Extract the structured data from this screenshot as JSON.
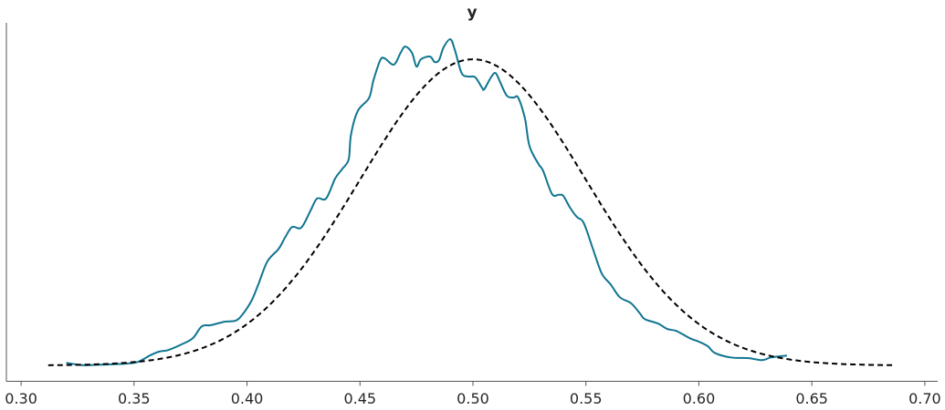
{
  "chart_data": {
    "type": "line",
    "title": "y",
    "xlabel": "",
    "ylabel": "",
    "xlim": [
      0.2935,
      0.7057
    ],
    "ylim": [
      -0.4,
      8.93
    ],
    "xticks": [
      0.3,
      0.35,
      0.4,
      0.45,
      0.5,
      0.55,
      0.6,
      0.65,
      0.7
    ],
    "xtick_labels": [
      "0.30",
      "0.35",
      "0.40",
      "0.45",
      "0.50",
      "0.55",
      "0.60",
      "0.65",
      "0.70"
    ],
    "yticks_shown": false,
    "grid": false,
    "legend": "none",
    "series": [
      {
        "style": "solid",
        "color": "#107591",
        "x": [
          0.32,
          0.327,
          0.335,
          0.347,
          0.352,
          0.357,
          0.361,
          0.365,
          0.371,
          0.376,
          0.38,
          0.384,
          0.39,
          0.395,
          0.398,
          0.402,
          0.405,
          0.409,
          0.414,
          0.417,
          0.42,
          0.424,
          0.428,
          0.431,
          0.435,
          0.439,
          0.442,
          0.445,
          0.446,
          0.449,
          0.454,
          0.456,
          0.459,
          0.461,
          0.465,
          0.468,
          0.47,
          0.473,
          0.475,
          0.477,
          0.481,
          0.483,
          0.485,
          0.487,
          0.49,
          0.492,
          0.495,
          0.498,
          0.501,
          0.504,
          0.505,
          0.508,
          0.51,
          0.512,
          0.515,
          0.518,
          0.52,
          0.523,
          0.525,
          0.529,
          0.531,
          0.535,
          0.538,
          0.54,
          0.543,
          0.546,
          0.549,
          0.553,
          0.557,
          0.561,
          0.565,
          0.57,
          0.574,
          0.576,
          0.582,
          0.586,
          0.59,
          0.596,
          0.6,
          0.604,
          0.607,
          0.614,
          0.622,
          0.628,
          0.632,
          0.639
        ],
        "y": [
          0.07,
          0.01,
          0.02,
          0.05,
          0.1,
          0.26,
          0.36,
          0.4,
          0.55,
          0.71,
          1.02,
          1.05,
          1.14,
          1.17,
          1.33,
          1.69,
          2.11,
          2.71,
          3.04,
          3.35,
          3.61,
          3.59,
          4.02,
          4.35,
          4.35,
          4.87,
          5.11,
          5.37,
          6.01,
          6.63,
          6.97,
          7.44,
          7.96,
          8.0,
          7.84,
          8.15,
          8.31,
          8.15,
          7.79,
          7.98,
          8.05,
          7.91,
          7.96,
          8.29,
          8.5,
          8.22,
          7.62,
          7.53,
          7.51,
          7.24,
          7.2,
          7.51,
          7.62,
          7.39,
          7.03,
          6.98,
          6.98,
          6.44,
          5.72,
          5.25,
          5.08,
          4.47,
          4.45,
          4.42,
          4.11,
          3.87,
          3.72,
          3.06,
          2.4,
          2.11,
          1.78,
          1.62,
          1.35,
          1.21,
          1.09,
          0.95,
          0.9,
          0.71,
          0.62,
          0.5,
          0.33,
          0.21,
          0.19,
          0.14,
          0.21,
          0.26
        ]
      },
      {
        "style": "dashed",
        "color": "#000000",
        "distribution": "normal",
        "mean": 0.5,
        "sd": 0.05,
        "x_range": [
          0.312,
          0.687
        ]
      }
    ]
  }
}
